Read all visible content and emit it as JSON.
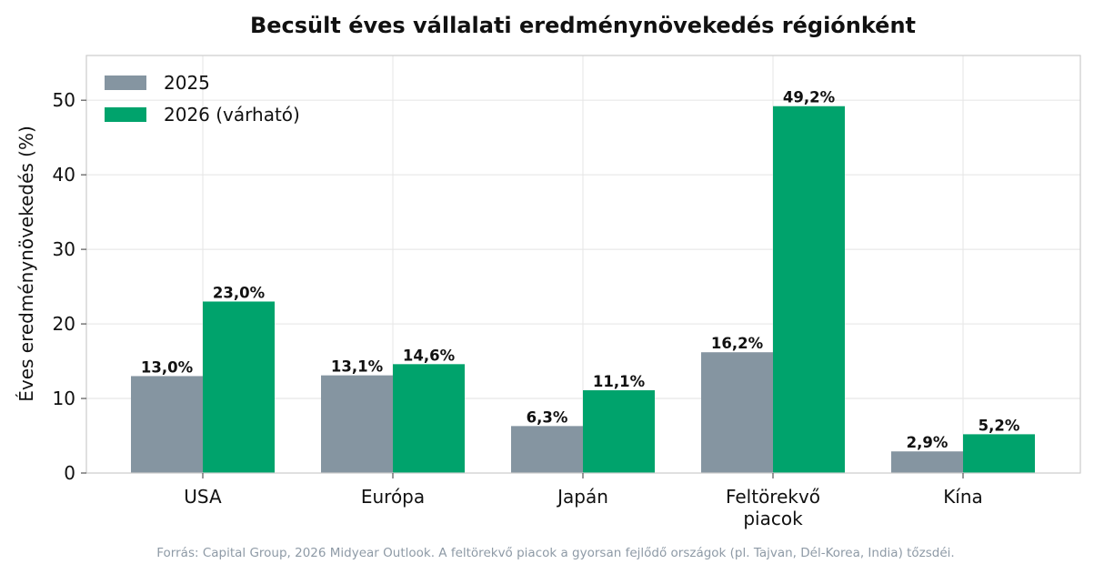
{
  "chart_data": {
    "type": "bar",
    "title": "Becsült éves vállalati eredménynövekedés régiónként",
    "ylabel": "Éves eredménynövekedés (%)",
    "xlabel": "",
    "categories": [
      [
        "USA"
      ],
      [
        "Európa"
      ],
      [
        "Japán"
      ],
      [
        "Feltörekvő",
        "piacok"
      ],
      [
        "Kína"
      ]
    ],
    "series": [
      {
        "name": "2025",
        "color": "#8595a1",
        "values": [
          13.0,
          13.1,
          6.3,
          16.2,
          2.9
        ],
        "labels": [
          "13,0%",
          "13,1%",
          "6,3%",
          "16,2%",
          "2,9%"
        ]
      },
      {
        "name": "2026 (várható)",
        "color": "#00a36c",
        "values": [
          23.0,
          14.6,
          11.1,
          49.2,
          5.2
        ],
        "labels": [
          "23,0%",
          "14,6%",
          "11,1%",
          "49,2%",
          "5,2%"
        ]
      }
    ],
    "ylim": [
      0,
      56
    ],
    "yticks": [
      0,
      10,
      20,
      30,
      40,
      50
    ],
    "grid": true,
    "legend": "top-left",
    "source": "Forrás: Capital Group, 2026 Midyear Outlook. A feltörekvő piacok a gyorsan fejlődő országok (pl. Tajvan, Dél-Korea, India) tőzsdéi."
  }
}
